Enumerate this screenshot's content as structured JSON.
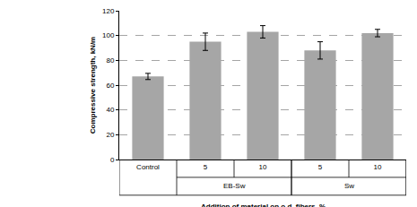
{
  "chart_data": {
    "type": "bar",
    "y_label": "Compressive strength, kN/m",
    "x_label": "Addition of material on o.d. fibers, %",
    "categories": [
      "Control",
      "5",
      "10",
      "5",
      "10"
    ],
    "groups": [
      {
        "label": "EB-Sw",
        "from": 1,
        "to": 2
      },
      {
        "label": "Sw",
        "from": 3,
        "to": 4
      }
    ],
    "values": [
      67,
      95,
      103,
      88,
      102
    ],
    "errors": [
      2.5,
      7,
      5,
      7,
      3
    ],
    "color": "#a6a6a6",
    "ylim": [
      0,
      120
    ],
    "yticks": [
      0,
      20,
      40,
      60,
      80,
      100,
      120
    ],
    "grid": true
  }
}
